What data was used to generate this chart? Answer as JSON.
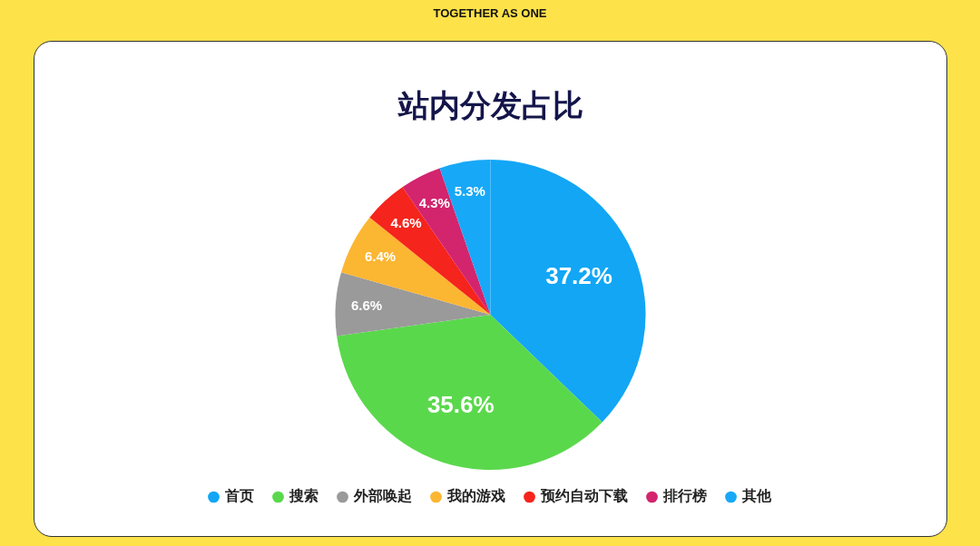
{
  "chart_data": {
    "type": "pie",
    "title": "站内分发占比",
    "categories": [
      "首页",
      "搜索",
      "外部唤起",
      "我的游戏",
      "预约自动下载",
      "排行榜",
      "其他"
    ],
    "values": [
      37.2,
      35.6,
      6.6,
      6.4,
      4.6,
      4.3,
      5.3
    ],
    "value_labels": [
      "37.2%",
      "35.6%",
      "6.6%",
      "6.4%",
      "4.6%",
      "4.3%",
      "5.3%"
    ],
    "colors": [
      "#12a6f5",
      "#5ad84c",
      "#9a9a9a",
      "#fbb632",
      "#f5241c",
      "#d3246e",
      "#17a8f7"
    ],
    "legend": "bottom",
    "annotations": [
      "TOGETHER AS ONE"
    ]
  }
}
